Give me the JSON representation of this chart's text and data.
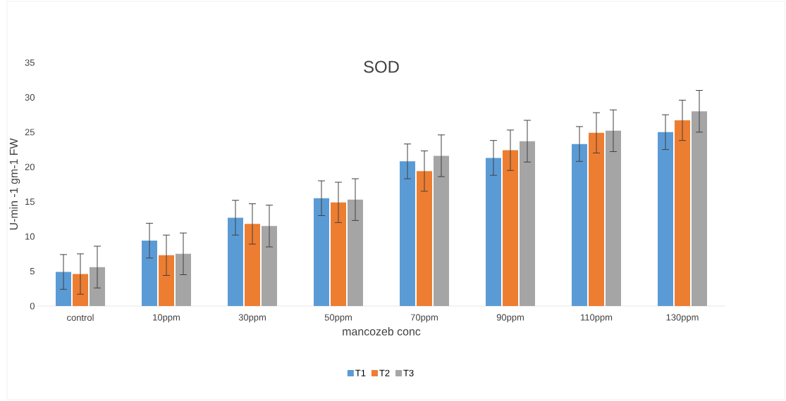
{
  "chart_data": {
    "type": "bar",
    "title": "SOD",
    "xlabel": "mancozeb conc",
    "ylabel": "U-min -1 gm-1 FW",
    "categories": [
      "control",
      "10ppm",
      "30ppm",
      "50ppm",
      "70ppm",
      "90ppm",
      "110ppm",
      "130ppm"
    ],
    "series": [
      {
        "name": "T1",
        "color": "#5b9bd5",
        "values": [
          4.9,
          9.4,
          12.7,
          15.5,
          20.8,
          21.3,
          23.3,
          25.0
        ],
        "errors": [
          2.5,
          2.5,
          2.5,
          2.5,
          2.5,
          2.5,
          2.5,
          2.5
        ]
      },
      {
        "name": "T2",
        "color": "#ed7d31",
        "values": [
          4.6,
          7.3,
          11.8,
          14.9,
          19.4,
          22.4,
          24.9,
          26.7
        ],
        "errors": [
          2.9,
          2.9,
          2.9,
          2.9,
          2.9,
          2.9,
          2.9,
          2.9
        ]
      },
      {
        "name": "T3",
        "color": "#a5a5a5",
        "values": [
          5.6,
          7.5,
          11.5,
          15.3,
          21.6,
          23.7,
          25.2,
          28.0
        ],
        "errors": [
          3.0,
          3.0,
          3.0,
          3.0,
          3.0,
          3.0,
          3.0,
          3.0
        ]
      }
    ],
    "ylim": [
      0,
      35
    ],
    "yticks": [
      0,
      5,
      10,
      15,
      20,
      25,
      30,
      35
    ],
    "grid": false,
    "legend": "bottom"
  }
}
